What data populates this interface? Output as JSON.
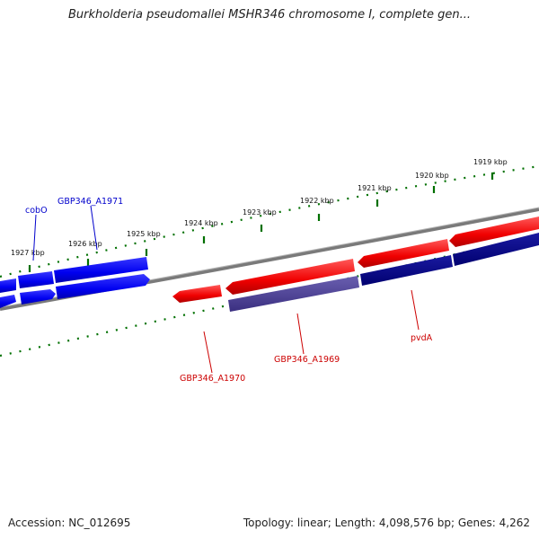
{
  "header": {
    "title": "Burkholderia pseudomallei MSHR346 chromosome I, complete gen..."
  },
  "footer": {
    "accession_label": "Accession: NC_012695",
    "topology_label": "Topology: linear; Length: 4,098,576 bp; Genes: 4,262"
  },
  "genome_map": {
    "scale_ticks_kbp": [
      {
        "kbp": 1919,
        "label": "1919 kbp"
      },
      {
        "kbp": 1920,
        "label": "1920 kbp"
      },
      {
        "kbp": 1921,
        "label": "1921 kbp"
      },
      {
        "kbp": 1922,
        "label": "1922 kbp"
      },
      {
        "kbp": 1923,
        "label": "1923 kbp"
      },
      {
        "kbp": 1924,
        "label": "1924 kbp"
      },
      {
        "kbp": 1925,
        "label": "1925 kbp"
      },
      {
        "kbp": 1926,
        "label": "1926 kbp"
      },
      {
        "kbp": 1927,
        "label": "1927 kbp"
      }
    ],
    "gene_labels": [
      {
        "name": "cobO",
        "color": "#0000cc"
      },
      {
        "name": "GBP346_A1971",
        "color": "#0000cc"
      },
      {
        "name": "GBP346_A1970",
        "color": "#cc0000"
      },
      {
        "name": "GBP346_A1969",
        "color": "#cc0000"
      },
      {
        "name": "pvdA",
        "color": "#cc0000"
      }
    ],
    "colors": {
      "forward_strand_gene": "#0000ff",
      "reverse_strand_gene": "#ff0000",
      "reverse_strand_cds": "#000080",
      "selected_cds": "#4b3f8f",
      "backbone": "#808080",
      "tick_marks": "#007000"
    }
  }
}
